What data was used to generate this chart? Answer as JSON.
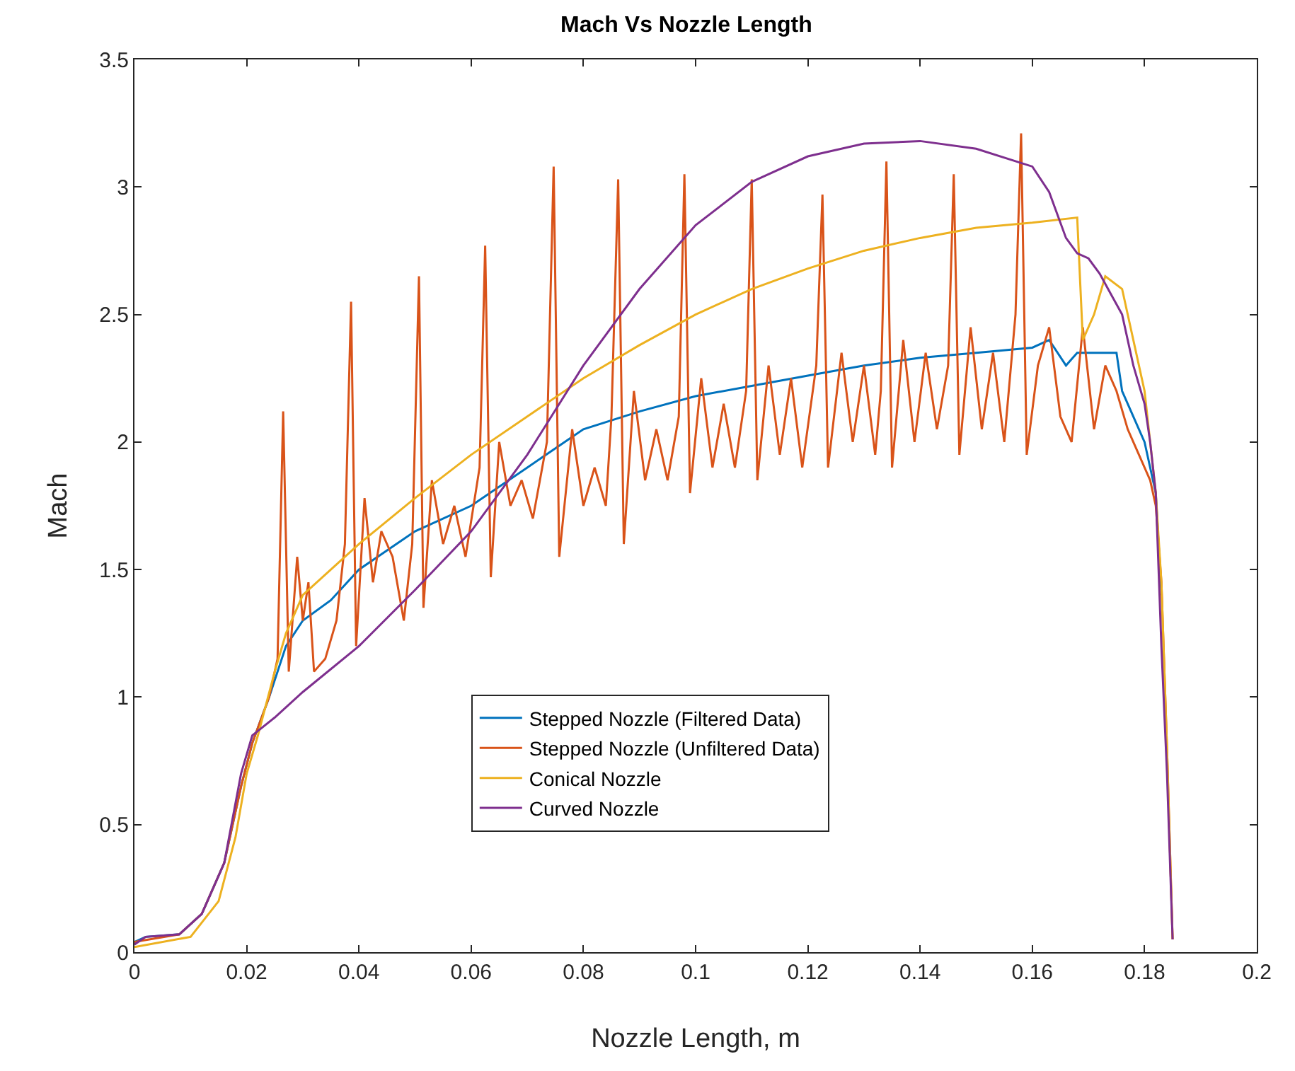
{
  "chart_data": {
    "type": "line",
    "title": "Mach Vs Nozzle Length",
    "xlabel": "Nozzle Length, m",
    "ylabel": "Mach",
    "xlim": [
      0,
      0.2
    ],
    "xticks": [
      0,
      0.02,
      0.04,
      0.06,
      0.08,
      0.1,
      0.12,
      0.14,
      0.16,
      0.18,
      0.2
    ],
    "ylim": [
      0,
      3.5
    ],
    "yticks": [
      0,
      0.5,
      1,
      1.5,
      2,
      2.5,
      3,
      3.5
    ],
    "grid": false,
    "legend": "bottom",
    "marker": "none",
    "line_style": "solid",
    "series": [
      {
        "name": "Stepped Nozzle (Filtered Data)",
        "color": "#0072bd",
        "x": [
          0,
          0.002,
          0.008,
          0.012,
          0.016,
          0.019,
          0.021,
          0.024,
          0.027,
          0.03,
          0.035,
          0.04,
          0.05,
          0.06,
          0.07,
          0.08,
          0.09,
          0.1,
          0.11,
          0.12,
          0.13,
          0.14,
          0.15,
          0.16,
          0.163,
          0.166,
          0.168,
          0.175,
          0.176,
          0.178,
          0.18,
          0.182,
          0.183
        ],
        "values": [
          0.04,
          0.06,
          0.07,
          0.15,
          0.35,
          0.65,
          0.82,
          1.0,
          1.2,
          1.3,
          1.38,
          1.5,
          1.65,
          1.75,
          1.9,
          2.05,
          2.12,
          2.18,
          2.22,
          2.26,
          2.3,
          2.33,
          2.35,
          2.37,
          2.4,
          2.3,
          2.35,
          2.35,
          2.2,
          2.1,
          2.0,
          1.8,
          1.4
        ]
      },
      {
        "name": "Stepped Nozzle (Unfiltered Data)",
        "color": "#d95319",
        "x": [
          0,
          0.008,
          0.012,
          0.016,
          0.019,
          0.021,
          0.024,
          0.0255,
          0.0265,
          0.0275,
          0.029,
          0.03,
          0.031,
          0.032,
          0.034,
          0.036,
          0.0375,
          0.0386,
          0.0395,
          0.041,
          0.0425,
          0.044,
          0.046,
          0.048,
          0.0495,
          0.0507,
          0.0515,
          0.053,
          0.055,
          0.057,
          0.059,
          0.0615,
          0.0625,
          0.0635,
          0.065,
          0.067,
          0.069,
          0.071,
          0.0735,
          0.0747,
          0.0757,
          0.078,
          0.08,
          0.082,
          0.084,
          0.085,
          0.0862,
          0.0872,
          0.089,
          0.091,
          0.093,
          0.095,
          0.097,
          0.098,
          0.099,
          0.101,
          0.103,
          0.105,
          0.107,
          0.109,
          0.11,
          0.111,
          0.113,
          0.115,
          0.117,
          0.119,
          0.1215,
          0.1226,
          0.1236,
          0.126,
          0.128,
          0.13,
          0.132,
          0.133,
          0.134,
          0.135,
          0.137,
          0.139,
          0.141,
          0.143,
          0.145,
          0.146,
          0.147,
          0.149,
          0.151,
          0.153,
          0.155,
          0.157,
          0.158,
          0.159,
          0.161,
          0.163,
          0.165,
          0.167,
          0.169,
          0.171,
          0.173,
          0.175,
          0.177,
          0.179,
          0.181,
          0.182,
          0.183,
          0.184,
          0.185
        ],
        "values": [
          0.04,
          0.07,
          0.15,
          0.35,
          0.65,
          0.82,
          1.0,
          1.15,
          2.12,
          1.1,
          1.55,
          1.3,
          1.45,
          1.1,
          1.15,
          1.3,
          1.6,
          2.55,
          1.2,
          1.78,
          1.45,
          1.65,
          1.55,
          1.3,
          1.6,
          2.65,
          1.35,
          1.85,
          1.6,
          1.75,
          1.55,
          1.9,
          2.77,
          1.47,
          2.0,
          1.75,
          1.85,
          1.7,
          2.0,
          3.08,
          1.55,
          2.05,
          1.75,
          1.9,
          1.75,
          2.1,
          3.03,
          1.6,
          2.2,
          1.85,
          2.05,
          1.85,
          2.1,
          3.05,
          1.8,
          2.25,
          1.9,
          2.15,
          1.9,
          2.2,
          3.03,
          1.85,
          2.3,
          1.95,
          2.25,
          1.9,
          2.3,
          2.97,
          1.9,
          2.35,
          2.0,
          2.3,
          1.95,
          2.2,
          3.1,
          1.9,
          2.4,
          2.0,
          2.35,
          2.05,
          2.3,
          3.05,
          1.95,
          2.45,
          2.05,
          2.35,
          2.0,
          2.5,
          3.21,
          1.95,
          2.3,
          2.45,
          2.1,
          2.0,
          2.45,
          2.05,
          2.3,
          2.2,
          2.05,
          1.95,
          1.85,
          1.75,
          1.45,
          0.8,
          0.05
        ]
      },
      {
        "name": "Conical Nozzle",
        "color": "#edb120",
        "x": [
          0,
          0.01,
          0.015,
          0.018,
          0.02,
          0.022,
          0.025,
          0.027,
          0.03,
          0.04,
          0.05,
          0.06,
          0.07,
          0.08,
          0.09,
          0.1,
          0.11,
          0.12,
          0.13,
          0.14,
          0.15,
          0.16,
          0.168,
          0.169,
          0.171,
          0.173,
          0.176,
          0.178,
          0.18,
          0.181,
          0.182,
          0.183,
          0.184,
          0.185
        ],
        "values": [
          0.02,
          0.06,
          0.2,
          0.45,
          0.7,
          0.85,
          1.1,
          1.25,
          1.4,
          1.6,
          1.78,
          1.95,
          2.1,
          2.25,
          2.38,
          2.5,
          2.6,
          2.68,
          2.75,
          2.8,
          2.84,
          2.86,
          2.88,
          2.4,
          2.5,
          2.65,
          2.6,
          2.4,
          2.2,
          2.0,
          1.8,
          1.45,
          0.8,
          0.05
        ]
      },
      {
        "name": "Curved Nozzle",
        "color": "#7e2f8e",
        "x": [
          0,
          0.002,
          0.008,
          0.012,
          0.016,
          0.019,
          0.021,
          0.025,
          0.03,
          0.04,
          0.05,
          0.06,
          0.07,
          0.08,
          0.09,
          0.1,
          0.11,
          0.12,
          0.13,
          0.14,
          0.15,
          0.16,
          0.163,
          0.166,
          0.168,
          0.17,
          0.172,
          0.174,
          0.176,
          0.178,
          0.18,
          0.181,
          0.182,
          0.183,
          0.184,
          0.185
        ],
        "values": [
          0.03,
          0.06,
          0.07,
          0.15,
          0.35,
          0.7,
          0.85,
          0.92,
          1.02,
          1.2,
          1.42,
          1.65,
          1.95,
          2.3,
          2.6,
          2.85,
          3.02,
          3.12,
          3.17,
          3.18,
          3.15,
          3.08,
          2.98,
          2.8,
          2.74,
          2.72,
          2.66,
          2.58,
          2.5,
          2.3,
          2.15,
          2.0,
          1.8,
          1.2,
          0.7,
          0.05
        ]
      }
    ]
  }
}
